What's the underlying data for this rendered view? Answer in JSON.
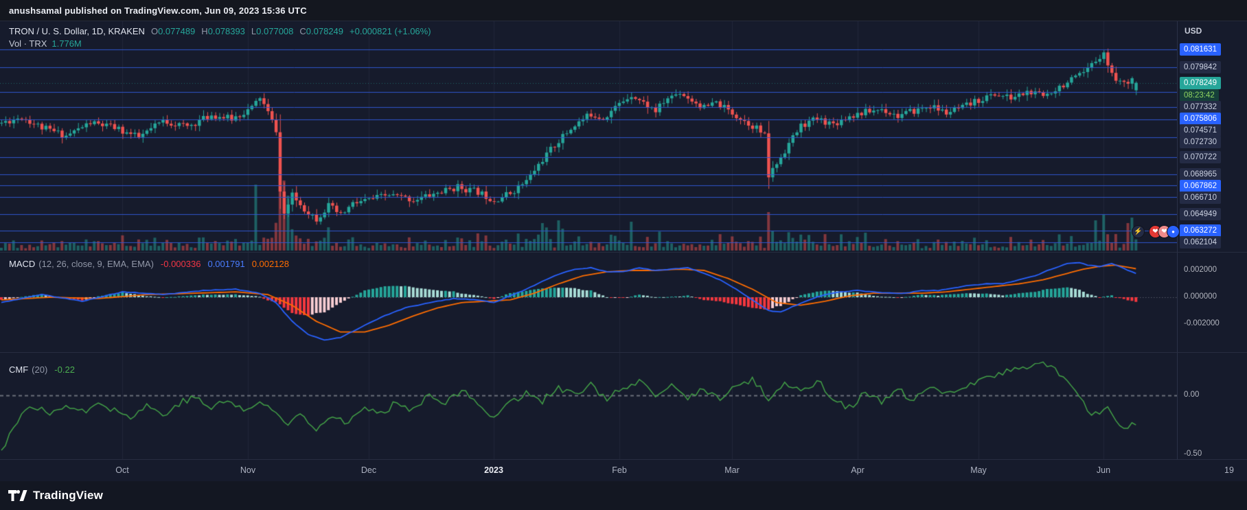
{
  "header": {
    "title": "anushsamal published on TradingView.com, Jun 09, 2023 15:36 UTC"
  },
  "footer": {
    "brand": "TradingView"
  },
  "main_legend": {
    "symbol_line": "TRON / U. S. Dollar, 1D, KRAKEN",
    "ohlc": {
      "o_label": "O",
      "o_value": "0.077489",
      "h_label": "H",
      "h_value": "0.078393",
      "l_label": "L",
      "l_value": "0.077008",
      "c_label": "C",
      "c_value": "0.078249",
      "change": "+0.000821 (+1.06%)"
    },
    "volume_label": "Vol · TRX",
    "volume_value": "1.776M"
  },
  "macd_legend": {
    "name": "MACD",
    "params": "(12, 26, close, 9, EMA, EMA)",
    "hist": "-0.000336",
    "macd": "0.001791",
    "signal": "0.002128"
  },
  "cmf_legend": {
    "name": "CMF",
    "params": "(20)",
    "value": "-0.22"
  },
  "price_axis": {
    "currency": "USD",
    "labels": [
      {
        "text": "0.081631",
        "value": 0.081631,
        "type": "line-blue"
      },
      {
        "text": "0.079842",
        "value": 0.079842,
        "type": "line-muted"
      },
      {
        "text": "0.078249",
        "value": 0.078249,
        "type": "price-up"
      },
      {
        "text": "08:23:42",
        "value": null,
        "type": "countdown"
      },
      {
        "text": "0.077332",
        "value": 0.077332,
        "type": "line-muted"
      },
      {
        "text": "0.075806",
        "value": 0.075806,
        "type": "line-blue"
      },
      {
        "text": "0.074571",
        "value": 0.074571,
        "type": "line-muted"
      },
      {
        "text": "0.072730",
        "value": 0.07273,
        "type": "line-muted"
      },
      {
        "text": "0.070722",
        "value": 0.070722,
        "type": "line-muted"
      },
      {
        "text": "0.068965",
        "value": 0.068965,
        "type": "line-muted"
      },
      {
        "text": "0.067862",
        "value": 0.067862,
        "type": "line-blue"
      },
      {
        "text": "0.066710",
        "value": 0.06671,
        "type": "line-muted"
      },
      {
        "text": "0.064949",
        "value": 0.064949,
        "type": "line-muted"
      },
      {
        "text": "0.063272",
        "value": 0.063272,
        "type": "line-blue"
      },
      {
        "text": "0.062104",
        "value": 0.062104,
        "type": "line-muted"
      }
    ],
    "macd_ticks": [
      {
        "label": "0.002000",
        "value": 0.002
      },
      {
        "label": "0.000000",
        "value": 0
      },
      {
        "label": "-0.002000",
        "value": -0.002
      }
    ],
    "cmf_ticks": [
      {
        "label": "0.00",
        "value": 0
      },
      {
        "label": "-0.50",
        "value": -0.5
      }
    ]
  },
  "theme": {
    "up": "#26a69a",
    "down": "#ef5350",
    "vol_up": "rgba(38,166,154,0.5)",
    "vol_down": "rgba(239,83,80,0.5)",
    "level_line": "rgba(50,88,214,0.95)",
    "grid": "rgba(150,160,185,0.09)",
    "macd_line": "#2962ff",
    "signal_line": "#ff6d00",
    "hist_pos": "#26a69a",
    "hist_pos_weak": "#a8dcd6",
    "hist_neg": "#f5383f",
    "hist_neg_weak": "#f8cdd2",
    "cmf_line": "#43a047",
    "zero_line": "#565b68",
    "current_dotted": "rgba(38,166,154,0.55)"
  },
  "chart_data": {
    "type": "candlestick+indicators",
    "symbol": "TRON / U. S. Dollar",
    "exchange": "KRAKEN",
    "interval": "1D",
    "current_price": 0.078249,
    "last_candle": {
      "o": 0.077489,
      "h": 0.078393,
      "l": 0.077008,
      "c": 0.078249
    },
    "support_levels": [
      0.081631,
      0.079842,
      0.077332,
      0.075806,
      0.074571,
      0.07273,
      0.070722,
      0.068965,
      0.067862,
      0.06671,
      0.064949,
      0.063272,
      0.062104
    ],
    "ylim_main": [
      0.0616,
      0.0845
    ],
    "x_axis": {
      "start_date": "2022-09-01",
      "days_total": 281,
      "months": [
        {
          "label": "Oct",
          "day": 30
        },
        {
          "label": "Nov",
          "day": 61
        },
        {
          "label": "Dec",
          "day": 91
        },
        {
          "label": "2023",
          "day": 122,
          "bold": true
        },
        {
          "label": "Feb",
          "day": 153
        },
        {
          "label": "Mar",
          "day": 181
        },
        {
          "label": "Apr",
          "day": 212
        },
        {
          "label": "May",
          "day": 242
        },
        {
          "label": "Jun",
          "day": 273
        },
        {
          "label": "19",
          "day": 304
        }
      ]
    },
    "price_anchors": [
      [
        0,
        0.0742
      ],
      [
        5,
        0.0748
      ],
      [
        10,
        0.0737
      ],
      [
        16,
        0.0729
      ],
      [
        22,
        0.0742
      ],
      [
        28,
        0.0737
      ],
      [
        34,
        0.0727
      ],
      [
        40,
        0.0744
      ],
      [
        46,
        0.0738
      ],
      [
        52,
        0.075
      ],
      [
        57,
        0.0746
      ],
      [
        62,
        0.0757
      ],
      [
        64,
        0.0768
      ],
      [
        66,
        0.0752
      ],
      [
        68,
        0.0735
      ],
      [
        69,
        0.0672
      ],
      [
        70,
        0.065
      ],
      [
        72,
        0.0668
      ],
      [
        75,
        0.0655
      ],
      [
        78,
        0.0645
      ],
      [
        81,
        0.0658
      ],
      [
        84,
        0.0648
      ],
      [
        87,
        0.066
      ],
      [
        91,
        0.0664
      ],
      [
        96,
        0.0669
      ],
      [
        102,
        0.0664
      ],
      [
        108,
        0.0671
      ],
      [
        113,
        0.0677
      ],
      [
        118,
        0.0672
      ],
      [
        122,
        0.0664
      ],
      [
        126,
        0.0671
      ],
      [
        130,
        0.0683
      ],
      [
        134,
        0.0705
      ],
      [
        138,
        0.0724
      ],
      [
        142,
        0.074
      ],
      [
        146,
        0.0751
      ],
      [
        149,
        0.0747
      ],
      [
        153,
        0.0761
      ],
      [
        156,
        0.0771
      ],
      [
        159,
        0.0762
      ],
      [
        162,
        0.0754
      ],
      [
        165,
        0.0767
      ],
      [
        168,
        0.0773
      ],
      [
        171,
        0.0765
      ],
      [
        174,
        0.0757
      ],
      [
        177,
        0.0762
      ],
      [
        181,
        0.0752
      ],
      [
        184,
        0.0744
      ],
      [
        187,
        0.0737
      ],
      [
        189,
        0.0728
      ],
      [
        190,
        0.0688
      ],
      [
        192,
        0.0701
      ],
      [
        195,
        0.0721
      ],
      [
        198,
        0.0739
      ],
      [
        202,
        0.0746
      ],
      [
        206,
        0.0741
      ],
      [
        210,
        0.0749
      ],
      [
        214,
        0.0753
      ],
      [
        218,
        0.0756
      ],
      [
        222,
        0.0749
      ],
      [
        226,
        0.0754
      ],
      [
        230,
        0.0759
      ],
      [
        234,
        0.0752
      ],
      [
        238,
        0.0757
      ],
      [
        242,
        0.0765
      ],
      [
        246,
        0.0771
      ],
      [
        250,
        0.0767
      ],
      [
        254,
        0.0773
      ],
      [
        258,
        0.0769
      ],
      [
        262,
        0.0779
      ],
      [
        265,
        0.0785
      ],
      [
        268,
        0.0791
      ],
      [
        271,
        0.0805
      ],
      [
        273,
        0.0815
      ],
      [
        274,
        0.0799
      ],
      [
        276,
        0.0787
      ],
      [
        278,
        0.0781
      ],
      [
        280,
        0.0789
      ],
      [
        281,
        0.078249
      ]
    ],
    "volume_spikes": {
      "63": 96,
      "69": 118,
      "70": 102,
      "71": 80,
      "134": 40,
      "138": 44,
      "156": 42,
      "190": 56,
      "271": 44,
      "273": 52,
      "279": 40,
      "280": 48
    },
    "macd": {
      "axis_range": [
        -0.002,
        0.002
      ],
      "macd_anchors": [
        [
          0,
          -0.0004
        ],
        [
          10,
          0.0002
        ],
        [
          20,
          -0.0003
        ],
        [
          30,
          0.0004
        ],
        [
          40,
          0.0002
        ],
        [
          50,
          0.0005
        ],
        [
          58,
          0.0006
        ],
        [
          64,
          0.0003
        ],
        [
          68,
          -0.0004
        ],
        [
          72,
          -0.0018
        ],
        [
          76,
          -0.0028
        ],
        [
          80,
          -0.0032
        ],
        [
          84,
          -0.003
        ],
        [
          88,
          -0.0024
        ],
        [
          94,
          -0.0015
        ],
        [
          100,
          -0.0008
        ],
        [
          106,
          -0.0004
        ],
        [
          112,
          -0.0001
        ],
        [
          118,
          -0.0002
        ],
        [
          122,
          -0.0004
        ],
        [
          126,
          0.0001
        ],
        [
          130,
          0.0006
        ],
        [
          134,
          0.0012
        ],
        [
          138,
          0.0017
        ],
        [
          142,
          0.0021
        ],
        [
          146,
          0.0022
        ],
        [
          150,
          0.0019
        ],
        [
          154,
          0.0019
        ],
        [
          158,
          0.0022
        ],
        [
          162,
          0.002
        ],
        [
          166,
          0.0021
        ],
        [
          170,
          0.0022
        ],
        [
          174,
          0.0018
        ],
        [
          178,
          0.0013
        ],
        [
          182,
          0.0006
        ],
        [
          186,
          -0.0002
        ],
        [
          190,
          -0.001
        ],
        [
          193,
          -0.0011
        ],
        [
          196,
          -0.0007
        ],
        [
          200,
          -0.0002
        ],
        [
          204,
          0.0002
        ],
        [
          208,
          0.0004
        ],
        [
          212,
          0.0005
        ],
        [
          216,
          0.0004
        ],
        [
          220,
          0.0003
        ],
        [
          224,
          0.0003
        ],
        [
          228,
          0.0005
        ],
        [
          232,
          0.0005
        ],
        [
          236,
          0.0007
        ],
        [
          240,
          0.0009
        ],
        [
          244,
          0.001
        ],
        [
          248,
          0.001
        ],
        [
          252,
          0.0013
        ],
        [
          256,
          0.0016
        ],
        [
          260,
          0.0021
        ],
        [
          264,
          0.0025
        ],
        [
          267,
          0.0026
        ],
        [
          269,
          0.0024
        ],
        [
          272,
          0.0023
        ],
        [
          275,
          0.0025
        ],
        [
          277,
          0.0023
        ],
        [
          279,
          0.002
        ],
        [
          281,
          0.001791
        ]
      ],
      "signal_anchors": [
        [
          0,
          -0.0002
        ],
        [
          12,
          0.0
        ],
        [
          24,
          -0.0001
        ],
        [
          36,
          0.0002
        ],
        [
          48,
          0.0003
        ],
        [
          58,
          0.0004
        ],
        [
          66,
          0.0002
        ],
        [
          72,
          -0.0006
        ],
        [
          78,
          -0.0018
        ],
        [
          84,
          -0.0026
        ],
        [
          90,
          -0.0026
        ],
        [
          96,
          -0.0021
        ],
        [
          102,
          -0.0014
        ],
        [
          108,
          -0.0008
        ],
        [
          114,
          -0.0004
        ],
        [
          120,
          -0.0003
        ],
        [
          126,
          -0.0002
        ],
        [
          132,
          0.0003
        ],
        [
          138,
          0.001
        ],
        [
          144,
          0.0016
        ],
        [
          150,
          0.0019
        ],
        [
          156,
          0.002
        ],
        [
          162,
          0.002
        ],
        [
          168,
          0.0021
        ],
        [
          174,
          0.002
        ],
        [
          180,
          0.0014
        ],
        [
          186,
          0.0006
        ],
        [
          192,
          -0.0004
        ],
        [
          198,
          -0.0006
        ],
        [
          204,
          -0.0003
        ],
        [
          210,
          0.0001
        ],
        [
          216,
          0.0003
        ],
        [
          222,
          0.0003
        ],
        [
          228,
          0.0003
        ],
        [
          234,
          0.0004
        ],
        [
          240,
          0.0006
        ],
        [
          246,
          0.0008
        ],
        [
          252,
          0.001
        ],
        [
          258,
          0.0013
        ],
        [
          263,
          0.0017
        ],
        [
          268,
          0.0021
        ],
        [
          272,
          0.0023
        ],
        [
          276,
          0.0024
        ],
        [
          281,
          0.002128
        ]
      ]
    },
    "cmf": {
      "current": -0.22,
      "anchors": [
        [
          0,
          -0.44
        ],
        [
          4,
          -0.2
        ],
        [
          8,
          -0.08
        ],
        [
          12,
          -0.16
        ],
        [
          16,
          -0.06
        ],
        [
          20,
          -0.14
        ],
        [
          24,
          -0.04
        ],
        [
          28,
          -0.12
        ],
        [
          32,
          -0.18
        ],
        [
          36,
          -0.08
        ],
        [
          40,
          -0.16
        ],
        [
          44,
          -0.06
        ],
        [
          48,
          -0.02
        ],
        [
          52,
          -0.1
        ],
        [
          56,
          -0.04
        ],
        [
          60,
          -0.12
        ],
        [
          64,
          -0.06
        ],
        [
          68,
          -0.14
        ],
        [
          71,
          -0.24
        ],
        [
          74,
          -0.14
        ],
        [
          78,
          -0.26
        ],
        [
          82,
          -0.16
        ],
        [
          86,
          -0.22
        ],
        [
          90,
          -0.1
        ],
        [
          94,
          -0.16
        ],
        [
          98,
          -0.04
        ],
        [
          102,
          -0.12
        ],
        [
          106,
          0.02
        ],
        [
          110,
          -0.06
        ],
        [
          114,
          0.04
        ],
        [
          118,
          -0.08
        ],
        [
          122,
          -0.16
        ],
        [
          126,
          -0.06
        ],
        [
          130,
          0.02
        ],
        [
          134,
          -0.04
        ],
        [
          138,
          0.06
        ],
        [
          142,
          0.0
        ],
        [
          146,
          0.08
        ],
        [
          150,
          -0.02
        ],
        [
          154,
          0.05
        ],
        [
          158,
          0.1
        ],
        [
          162,
          0.0
        ],
        [
          166,
          0.07
        ],
        [
          170,
          -0.02
        ],
        [
          174,
          0.06
        ],
        [
          178,
          -0.04
        ],
        [
          182,
          0.08
        ],
        [
          186,
          0.12
        ],
        [
          190,
          -0.02
        ],
        [
          194,
          0.1
        ],
        [
          198,
          0.03
        ],
        [
          202,
          0.12
        ],
        [
          206,
          -0.02
        ],
        [
          210,
          -0.1
        ],
        [
          214,
          0.02
        ],
        [
          218,
          -0.06
        ],
        [
          222,
          0.04
        ],
        [
          226,
          -0.04
        ],
        [
          230,
          0.06
        ],
        [
          234,
          0.0
        ],
        [
          238,
          0.08
        ],
        [
          242,
          0.12
        ],
        [
          246,
          0.16
        ],
        [
          250,
          0.2
        ],
        [
          254,
          0.24
        ],
        [
          258,
          0.27
        ],
        [
          261,
          0.22
        ],
        [
          264,
          0.1
        ],
        [
          267,
          -0.02
        ],
        [
          269,
          -0.12
        ],
        [
          272,
          -0.18
        ],
        [
          274,
          -0.1
        ],
        [
          276,
          -0.2
        ],
        [
          278,
          -0.26
        ],
        [
          280,
          -0.24
        ],
        [
          281,
          -0.22
        ]
      ]
    }
  }
}
